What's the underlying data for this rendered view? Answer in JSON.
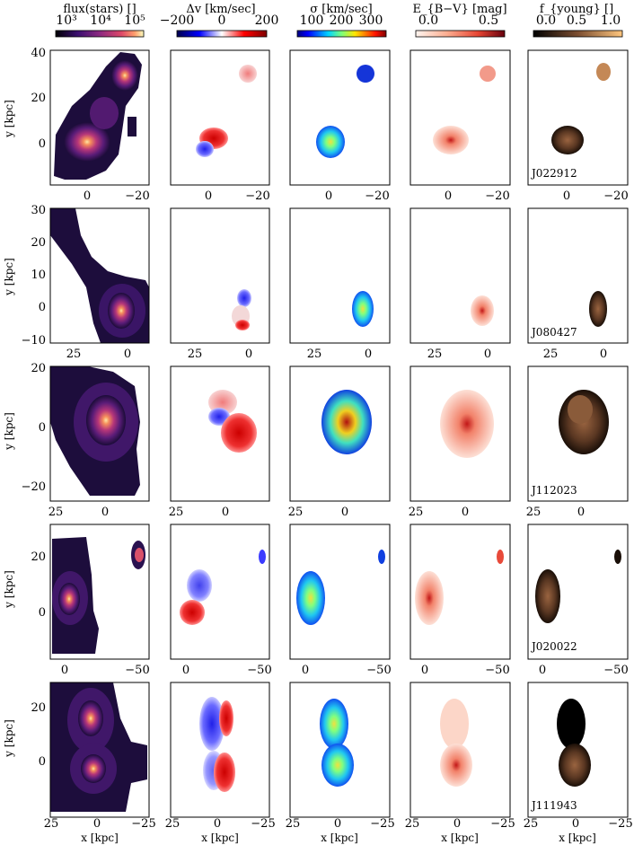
{
  "columns": [
    {
      "title": "flux(stars) []",
      "colormap": "magma",
      "ticks": [
        "10³",
        "10⁴",
        "10⁵"
      ]
    },
    {
      "title": "Δv [km/sec]",
      "colormap": "seismic",
      "ticks": [
        "−200",
        "0",
        "200"
      ]
    },
    {
      "title": "σ [km/sec]",
      "colormap": "jet",
      "ticks": [
        "100",
        "200",
        "300"
      ]
    },
    {
      "title": "E_{B−V} [mag]",
      "colormap": "reds",
      "ticks": [
        "0.0",
        "0.5"
      ]
    },
    {
      "title": "f_{young} []",
      "colormap": "copper",
      "ticks": [
        "0.0",
        "0.5",
        "1.0"
      ]
    }
  ],
  "rows": [
    {
      "id": "J022912",
      "x_ticks": [
        "0",
        "−20"
      ],
      "y_ticks": [
        "40",
        "20",
        "0"
      ],
      "show_xlabel": false
    },
    {
      "id": "J080427",
      "x_ticks": [
        "25",
        "0"
      ],
      "y_ticks": [
        "30",
        "20",
        "10",
        "0",
        "−10"
      ],
      "show_xlabel": false
    },
    {
      "id": "J112023",
      "x_ticks": [
        "25",
        "0"
      ],
      "y_ticks": [
        "20",
        "0",
        "−20"
      ],
      "show_xlabel": false
    },
    {
      "id": "J020022",
      "x_ticks": [
        "0",
        "−50"
      ],
      "y_ticks": [
        "20",
        "0"
      ],
      "show_xlabel": false
    },
    {
      "id": "J111943",
      "x_ticks": [
        "25",
        "0",
        "−25"
      ],
      "y_ticks": [
        "20",
        "0"
      ],
      "show_xlabel": true
    }
  ],
  "labels": {
    "y": "y [kpc]",
    "x": "x [kpc]"
  }
}
